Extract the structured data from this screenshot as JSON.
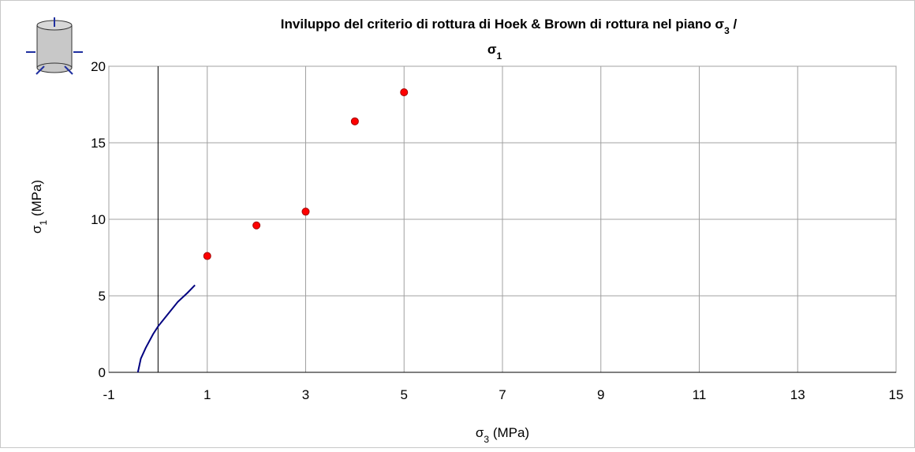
{
  "chart_data": {
    "type": "scatter",
    "title": [
      [
        "Inviluppo del criterio di rottura di Hoek & Brown di rottura nel piano σ",
        "3",
        " /"
      ],
      [
        "σ",
        "1"
      ]
    ],
    "x_label": [
      "σ",
      "3",
      " (MPa)"
    ],
    "y_label": [
      "σ",
      "1",
      " (MPa)"
    ],
    "xlim": [
      -1,
      15
    ],
    "xticks": [
      -1,
      1,
      3,
      5,
      7,
      9,
      11,
      13,
      15
    ],
    "ylim": [
      0,
      20
    ],
    "yticks": [
      0,
      5,
      10,
      15,
      20
    ],
    "grid": true,
    "series": [
      {
        "type": "line",
        "color": "#000080",
        "x": [
          -0.41,
          -0.35,
          -0.25,
          -0.1,
          0,
          0.2,
          0.4,
          0.6,
          0.75
        ],
        "values": [
          0,
          0.9,
          1.6,
          2.5,
          3.0,
          3.8,
          4.6,
          5.2,
          5.7
        ]
      },
      {
        "type": "scatter",
        "color": "#ff0000",
        "x": [
          1,
          2,
          3,
          4,
          5
        ],
        "values": [
          7.6,
          9.6,
          10.5,
          16.4,
          18.3
        ]
      }
    ]
  }
}
